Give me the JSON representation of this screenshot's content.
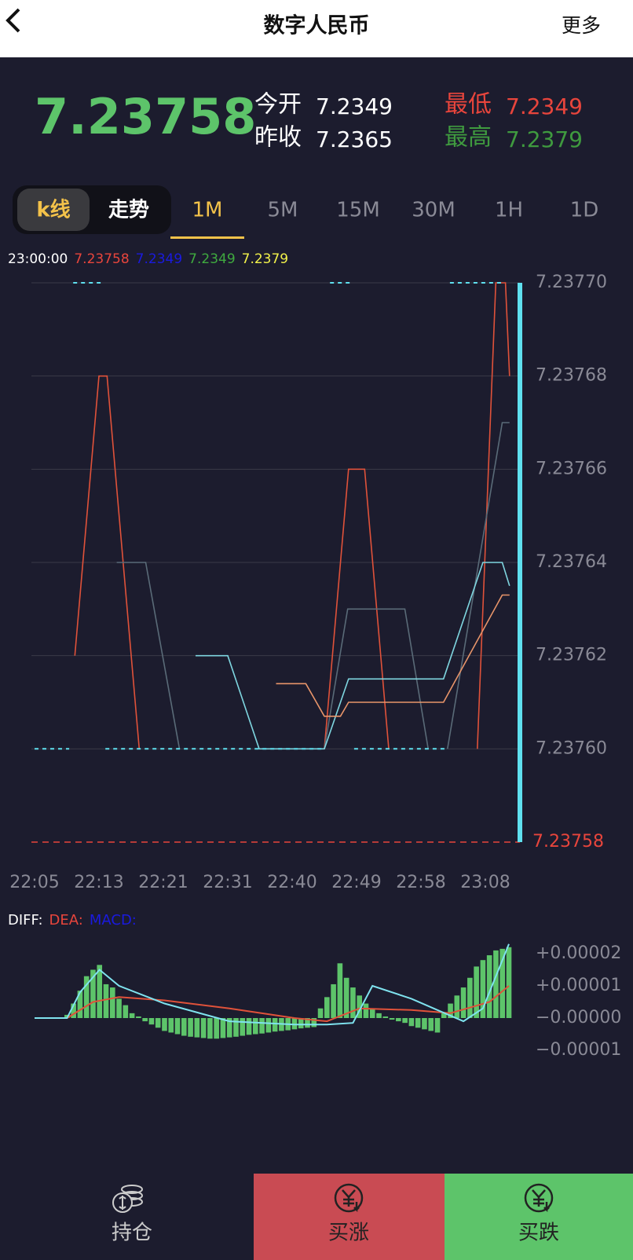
{
  "header": {
    "title": "数字人民币",
    "more": "更多"
  },
  "quote": {
    "price": 7.23758,
    "open_label": "今开",
    "open": 7.2349,
    "prev_close_label": "昨收",
    "prev_close": 7.2365,
    "low_label": "最低",
    "low": 7.2349,
    "high_label": "最高",
    "high": 7.2379
  },
  "tabs": {
    "modes": [
      "k线",
      "走势"
    ],
    "active_mode": 0,
    "periods": [
      "1M",
      "5M",
      "15M",
      "30M",
      "1H",
      "1D"
    ],
    "active_period": 0
  },
  "price_chart": {
    "legend": [
      {
        "text": "23:00:00",
        "color": "#ffffff"
      },
      {
        "text": "7.23758",
        "color": "#e8453c"
      },
      {
        "text": "7.2349",
        "color": "#1a1adf"
      },
      {
        "text": "7.2349",
        "color": "#3faa3f"
      },
      {
        "text": "7.2379",
        "color": "#f2f24a"
      }
    ],
    "xlim": [
      0,
      60
    ],
    "ylim": [
      7.23758,
      7.2377
    ],
    "yticks": [
      {
        "value": 7.2377,
        "label": "7.23770"
      },
      7.23768,
      7.23766,
      7.23764,
      7.23762,
      {
        "value": 7.2376,
        "label": "7.23760"
      }
    ],
    "xticks": [
      {
        "value": 0,
        "label": "22:05"
      },
      {
        "value": 8,
        "label": "22:13"
      },
      {
        "value": 16,
        "label": "22:21"
      },
      {
        "value": 24,
        "label": "22:31"
      },
      {
        "value": 32,
        "label": "22:40"
      },
      {
        "value": 40,
        "label": "22:49"
      },
      {
        "value": 48,
        "label": "22:58"
      },
      {
        "value": 56,
        "label": "23:08"
      }
    ],
    "last_price": 7.23758,
    "last_price_color": "#e8453c",
    "grid": true,
    "series": [
      {
        "color": "#e0523a",
        "dashed": false,
        "x": [
          5,
          8,
          9,
          13,
          null,
          36,
          39,
          41,
          44,
          null,
          55,
          57.3,
          58.5,
          59
        ],
        "values": [
          7.23762,
          7.23768,
          7.23768,
          7.2376,
          null,
          7.2376,
          7.23766,
          7.23766,
          7.2376,
          null,
          7.2376,
          7.2377,
          7.2377,
          7.23768
        ]
      },
      {
        "color": "#5a6b78",
        "dashed": false,
        "x": [
          10.2,
          13.8,
          18,
          null,
          36,
          38.9,
          46,
          48.9,
          null,
          51.3,
          58.1,
          59
        ],
        "values": [
          7.23764,
          7.23764,
          7.2376,
          null,
          7.2376,
          7.23763,
          7.23763,
          7.2376,
          null,
          7.2376,
          7.23767,
          7.23767
        ]
      },
      {
        "color": "#7fd6e0",
        "dashed": false,
        "x": [
          20,
          24,
          27.9,
          36,
          39,
          50.8,
          55.7,
          58.1,
          59
        ],
        "values": [
          7.23762,
          7.23762,
          7.2376,
          7.2376,
          7.237615,
          7.237615,
          7.23764,
          7.23764,
          7.237635
        ]
      },
      {
        "color": "#e8956a",
        "dashed": false,
        "x": [
          30,
          33.7,
          36,
          38,
          39,
          50.8,
          58.1,
          59
        ],
        "values": [
          7.237614,
          7.237614,
          7.237607,
          7.237607,
          7.23761,
          7.23761,
          7.237633,
          7.237633
        ]
      },
      {
        "color": "#5fe0ef",
        "dashed": true,
        "x": [
          0,
          4.3,
          null,
          8.8,
          36,
          null,
          39.7,
          51
        ],
        "values": [
          7.2376,
          7.2376,
          null,
          7.2376,
          7.2376,
          null,
          7.2376,
          7.2376
        ]
      },
      {
        "color": "#5fe0ef",
        "dashed": true,
        "x": [
          4.8,
          8.2,
          null,
          36.7,
          39.2,
          null,
          51.6,
          58.1
        ],
        "values": [
          7.2377,
          7.2377,
          null,
          7.2377,
          7.2377,
          null,
          7.2377,
          7.2377
        ]
      }
    ]
  },
  "macd_chart": {
    "legend": [
      {
        "text": "DIFF:",
        "color": "#ffffff"
      },
      {
        "text": "DEA:",
        "color": "#e8453c"
      },
      {
        "text": "MACD:",
        "color": "#1a1adf"
      }
    ],
    "xlim": [
      0,
      73
    ],
    "ylim": [
      -1.5e-05,
      2.5e-05
    ],
    "yticks": [
      {
        "value": 2e-05,
        "label": "+0.00002"
      },
      {
        "value": 1e-05,
        "label": "+0.00001"
      },
      {
        "value": 0,
        "label": "−0.00000"
      },
      {
        "value": -1e-05,
        "label": "−0.00001"
      }
    ],
    "bar_color": "#5dc46a",
    "bars": [
      null,
      null,
      null,
      null,
      null,
      1e-06,
      4.5e-06,
      8.5e-06,
      1.3e-05,
      1.5e-05,
      1.65e-05,
      1.05e-05,
      9.5e-06,
      6e-06,
      4e-06,
      1.5e-06,
      5e-07,
      -1e-06,
      -2e-06,
      -3e-06,
      -4e-06,
      -4.5e-06,
      -5e-06,
      -5.5e-06,
      -5.8e-06,
      -6e-06,
      -6.2e-06,
      -6.4e-06,
      -6.4e-06,
      -6.2e-06,
      -6e-06,
      -5.8e-06,
      -5.5e-06,
      -5.2e-06,
      -5e-06,
      -4.8e-06,
      -4.5e-06,
      -4.2e-06,
      -4e-06,
      -3.8e-06,
      -3.5e-06,
      -3.2e-06,
      -3e-06,
      -2.8e-06,
      3e-06,
      6.5e-06,
      1.05e-05,
      1.7e-05,
      1.25e-05,
      9.5e-06,
      7e-06,
      4.5e-06,
      3e-06,
      1.5e-06,
      5e-07,
      -5e-07,
      -1e-06,
      -1.5e-06,
      -2.5e-06,
      -3e-06,
      -3.5e-06,
      -4e-06,
      -4.5e-06,
      1.5e-06,
      4.5e-06,
      7e-06,
      9.5e-06,
      1.25e-05,
      1.6e-05,
      1.8e-05,
      1.95e-05,
      2.1e-05,
      2.15e-05,
      2.2e-05
    ],
    "diff": {
      "color": "#7fe3ef",
      "x": [
        0,
        5,
        7,
        10,
        13,
        20,
        30,
        40,
        45,
        49,
        52,
        58,
        62,
        66,
        69,
        73
      ],
      "values": [
        0,
        0,
        8e-06,
        1.5e-05,
        1e-05,
        4.5e-06,
        -1e-06,
        -2e-06,
        -2e-06,
        -1.5e-06,
        1e-05,
        6e-06,
        2.5e-06,
        -1e-06,
        3e-06,
        2.3e-05
      ]
    },
    "dea": {
      "color": "#e0523a",
      "x": [
        0,
        5,
        9,
        13,
        20,
        30,
        40,
        45,
        50,
        58,
        64,
        70,
        73
      ],
      "values": [
        0,
        0,
        5e-06,
        6.5e-06,
        5.5e-06,
        3e-06,
        0,
        -1e-06,
        3e-06,
        2.5e-06,
        1.5e-06,
        5e-06,
        1e-05
      ]
    }
  },
  "footer": {
    "buttons": [
      "持仓",
      "买涨",
      "买跌"
    ]
  }
}
